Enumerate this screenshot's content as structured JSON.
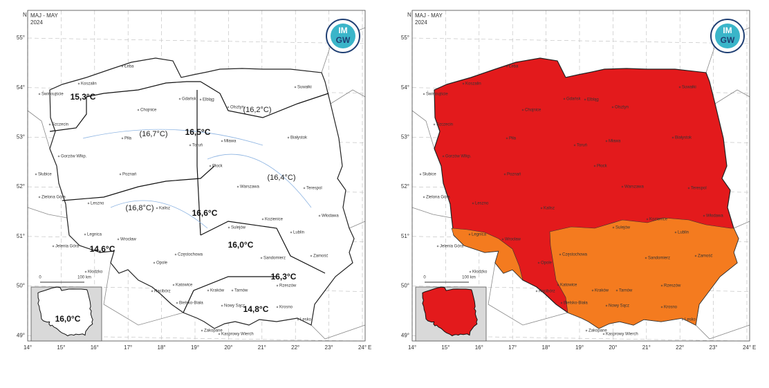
{
  "maps": [
    {
      "corner_label": "N",
      "period": "MAJ - MAY",
      "year": "2024",
      "logo": [
        "IM",
        "GW"
      ],
      "scale": [
        "0",
        "100 km"
      ],
      "east_label": "E",
      "temperatures": [
        "15,3°C",
        "(16,7°C)",
        "16,5°C",
        "(16,2°C)",
        "(16,4°C)",
        "(16,8°C)",
        "16,6°C",
        "14,6°C",
        "16,0°C",
        "16,3°C",
        "14,8°C"
      ],
      "inset_temperature": "16,0°C"
    },
    {
      "corner_label": "N",
      "period": "MAJ - MAY",
      "year": "2024",
      "logo": [
        "IM",
        "GW"
      ],
      "scale": [
        "0",
        "100 km"
      ],
      "east_label": "E"
    }
  ],
  "latitude_labels": [
    "55°",
    "54°",
    "53°",
    "52°",
    "51°",
    "50°",
    "49°"
  ],
  "longitude_labels": [
    "14°",
    "15°",
    "16°",
    "17°",
    "18°",
    "19°",
    "20°",
    "21°",
    "22°",
    "23°",
    "24°"
  ],
  "cities": [
    "Świnoujście",
    "Koszalin",
    "Łeba",
    "Gdańsk",
    "Elbląg",
    "Chojnice",
    "Olsztyn",
    "Suwałki",
    "Szczecin",
    "Piła",
    "Toruń",
    "Mława",
    "Białystok",
    "Gorzów Wlkp.",
    "Płock",
    "Poznań",
    "Słubice",
    "Warszawa",
    "Terespol",
    "Zielona Góra",
    "Leszno",
    "Kalisz",
    "Sulejów",
    "Kozienice",
    "Włodawa",
    "Legnica",
    "Wrocław",
    "Lublin",
    "Jelenia Góra",
    "Opole",
    "Częstochowa",
    "Sandomierz",
    "Zamość",
    "Kłodzko",
    "Katowice",
    "Racibórz",
    "Kraków",
    "Tarnów",
    "Rzeszów",
    "Bielsko-Biała",
    "Nowy Sącz",
    "Krosno",
    "Lesko",
    "Zakopane",
    "Kasprowy Wierch"
  ]
}
